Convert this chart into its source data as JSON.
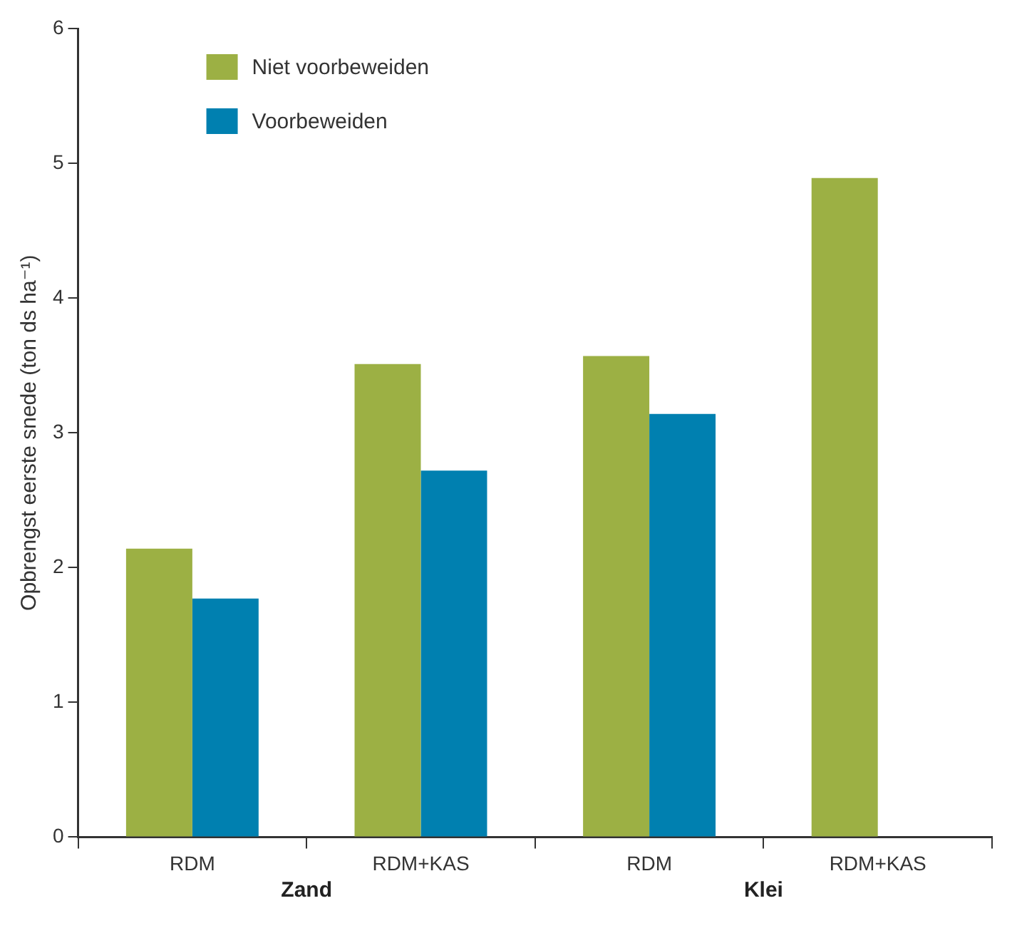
{
  "chart_data": {
    "type": "bar",
    "categories": [
      "RDM",
      "RDM+KAS",
      "RDM",
      "RDM+KAS"
    ],
    "series": [
      {
        "name": "Niet voorbeweiden",
        "color": "#9cb044",
        "values": [
          2.14,
          3.51,
          3.57,
          4.89
        ]
      },
      {
        "name": "Voorbeweiden",
        "color": "#0080b0",
        "values": [
          1.77,
          2.72,
          3.14,
          null
        ]
      }
    ],
    "ylabel": "Opbrengst eerste snede (ton ds ha⁻¹)",
    "ylim": [
      0,
      6
    ],
    "yticks": [
      0,
      1,
      2,
      3,
      4,
      5,
      6
    ],
    "annotations": [
      "Zand",
      "Klei"
    ],
    "grid": false,
    "legend": "top left"
  }
}
